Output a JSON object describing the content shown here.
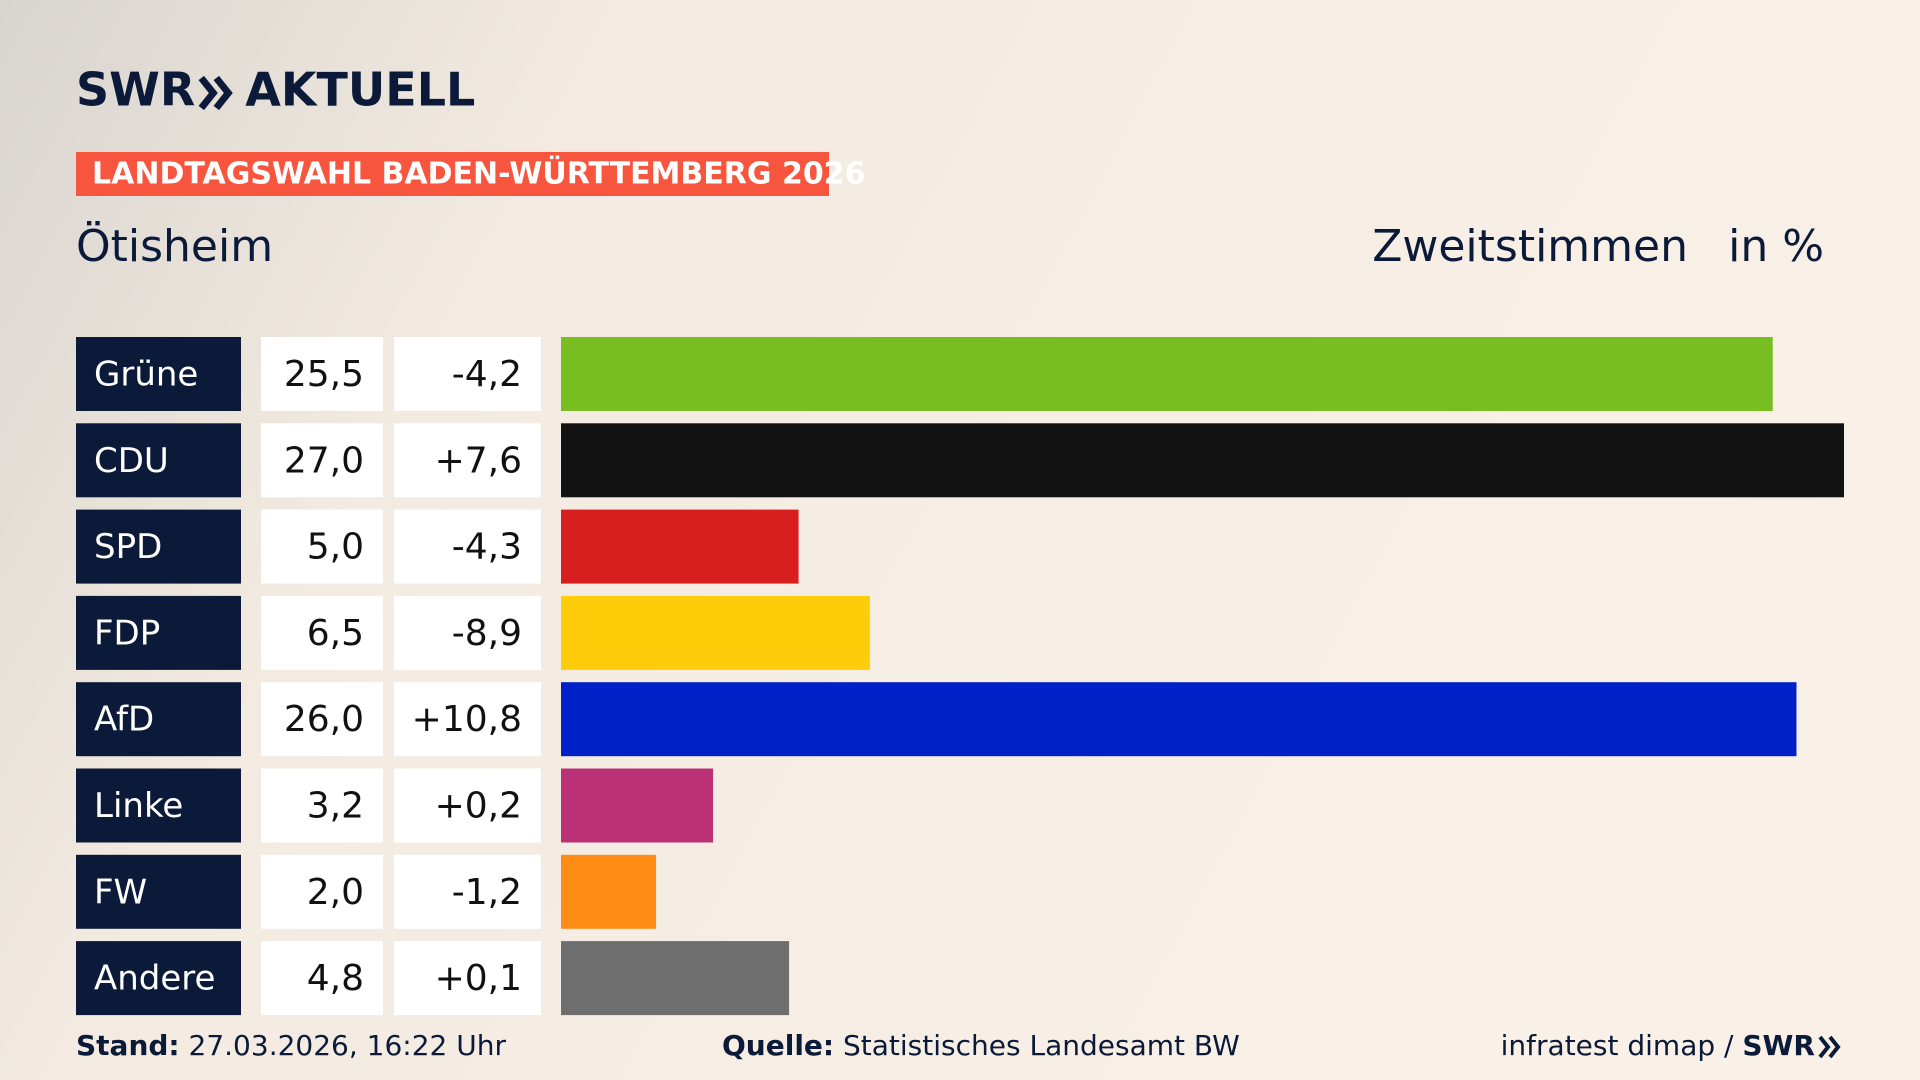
{
  "header": {
    "brand": "SWR",
    "brand_sub": "AKTUELL",
    "banner": "LANDTAGSWAHL BADEN-WÜRTTEMBERG 2026"
  },
  "chart_data": {
    "type": "bar",
    "title": "Ötisheim",
    "measure": "Zweitstimmen",
    "unit": "in %",
    "categories": [
      "Grüne",
      "CDU",
      "SPD",
      "FDP",
      "AfD",
      "Linke",
      "FW",
      "Andere"
    ],
    "values": [
      25.5,
      27.0,
      5.0,
      6.5,
      26.0,
      3.2,
      2.0,
      4.8
    ],
    "value_labels": [
      "25,5",
      "27,0",
      "5,0",
      "6,5",
      "26,0",
      "3,2",
      "2,0",
      "4,8"
    ],
    "changes": [
      "-4,2",
      "+7,6",
      "-4,3",
      "-8,9",
      "+10,8",
      "+0,2",
      "-1,2",
      "+0,1"
    ],
    "colors": [
      "#78be20",
      "#121212",
      "#d71f1f",
      "#ffcc0a",
      "#0020c8",
      "#bc3175",
      "#ff8c14",
      "#6e6e6e"
    ],
    "xlim": [
      0,
      27
    ]
  },
  "footer": {
    "stand_label": "Stand:",
    "stand": "27.03.2026, 16:22 Uhr",
    "source_label": "Quelle:",
    "source": "Statistisches Landesamt BW",
    "credit": "infratest dimap /",
    "credit_brand": "SWR"
  }
}
